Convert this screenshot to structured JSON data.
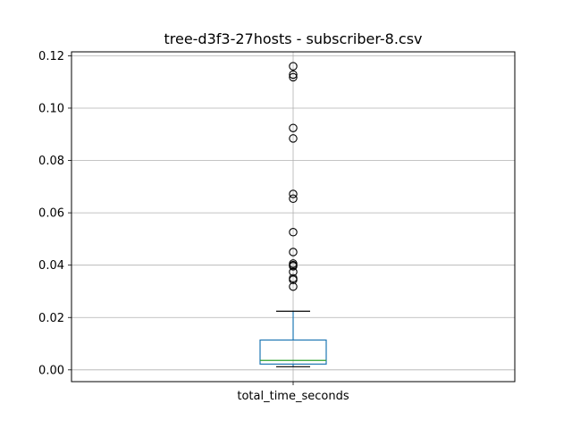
{
  "chart_data": {
    "type": "box",
    "title": "tree-d3f3-27hosts - subscriber-8.csv",
    "xlabel": "",
    "ylabel": "",
    "categories": [
      "total_time_seconds"
    ],
    "ylim": [
      -0.0045,
      0.1215
    ],
    "yticks": [
      0.0,
      0.02,
      0.04,
      0.06,
      0.08,
      0.1,
      0.12
    ],
    "ytick_labels": [
      "0.00",
      "0.02",
      "0.04",
      "0.06",
      "0.08",
      "0.10",
      "0.12"
    ],
    "grid": true,
    "box": {
      "whisker_low": 0.0012,
      "q1": 0.0022,
      "median": 0.0036,
      "q3": 0.0114,
      "whisker_high": 0.0224
    },
    "outliers": [
      0.116,
      0.1128,
      0.1118,
      0.0924,
      0.0884,
      0.0672,
      0.0654,
      0.0526,
      0.045,
      0.0406,
      0.04,
      0.0396,
      0.0374,
      0.035,
      0.0344,
      0.0318
    ],
    "colors": {
      "box": "#1f77b4",
      "median": "#2ca02c",
      "whisker": "#000000",
      "grid": "#b0b0b0"
    }
  }
}
